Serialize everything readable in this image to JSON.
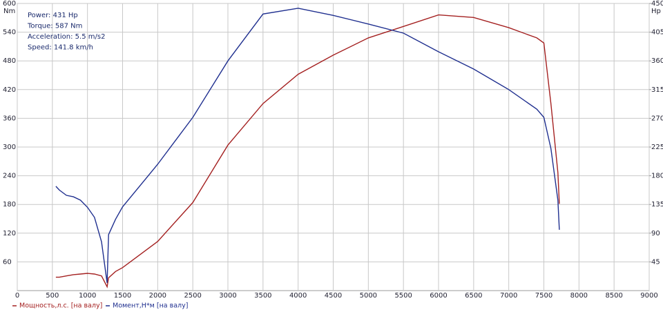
{
  "chart_data": {
    "type": "line",
    "y_label": "Nm",
    "y2_label": "Hp",
    "annotations": [
      "Power: 431 Hp",
      "Torque: 587 Nm",
      "Acceleration: 5.5 m/s2",
      "Speed: 141.8 km/h"
    ],
    "x": [
      550,
      600,
      700,
      800,
      900,
      1000,
      1100,
      1200,
      1280,
      1300,
      1400,
      1500,
      2000,
      2500,
      3000,
      3500,
      4000,
      4500,
      5000,
      5500,
      6000,
      6500,
      7000,
      7400,
      7500,
      7600,
      7700,
      7720
    ],
    "series": [
      {
        "name": "Мощность,л.с. [на валу]",
        "color": "#a42020",
        "axis": "y2",
        "values": [
          21,
          21,
          23,
          25,
          26,
          27,
          26,
          23,
          6,
          20,
          30,
          36,
          77,
          138,
          228,
          293,
          339,
          369,
          396,
          414,
          432,
          428,
          412,
          396,
          388,
          293,
          185,
          136
        ]
      },
      {
        "name": "Момент,Н*м [на валу]",
        "color": "#1f2f8f",
        "values": [
          218,
          210,
          199,
          196,
          189,
          174,
          153,
          102,
          16,
          117,
          149,
          175,
          264,
          362,
          480,
          578,
          590,
          575,
          557,
          538,
          499,
          463,
          420,
          379,
          362,
          297,
          189,
          127
        ]
      }
    ],
    "xlim": [
      0,
      9000
    ],
    "xticks": [
      0,
      500,
      1000,
      1500,
      2000,
      2500,
      3000,
      3500,
      4000,
      4500,
      5000,
      5500,
      6000,
      6500,
      7000,
      7500,
      8000,
      8500,
      9000
    ],
    "ylim": [
      0,
      600
    ],
    "yticks": [
      60,
      120,
      180,
      240,
      300,
      360,
      420,
      480,
      540,
      600
    ],
    "y2lim": [
      0,
      450
    ],
    "y2ticks": [
      45,
      90,
      135,
      180,
      225,
      270,
      315,
      360,
      405,
      450
    ],
    "grid": true
  }
}
